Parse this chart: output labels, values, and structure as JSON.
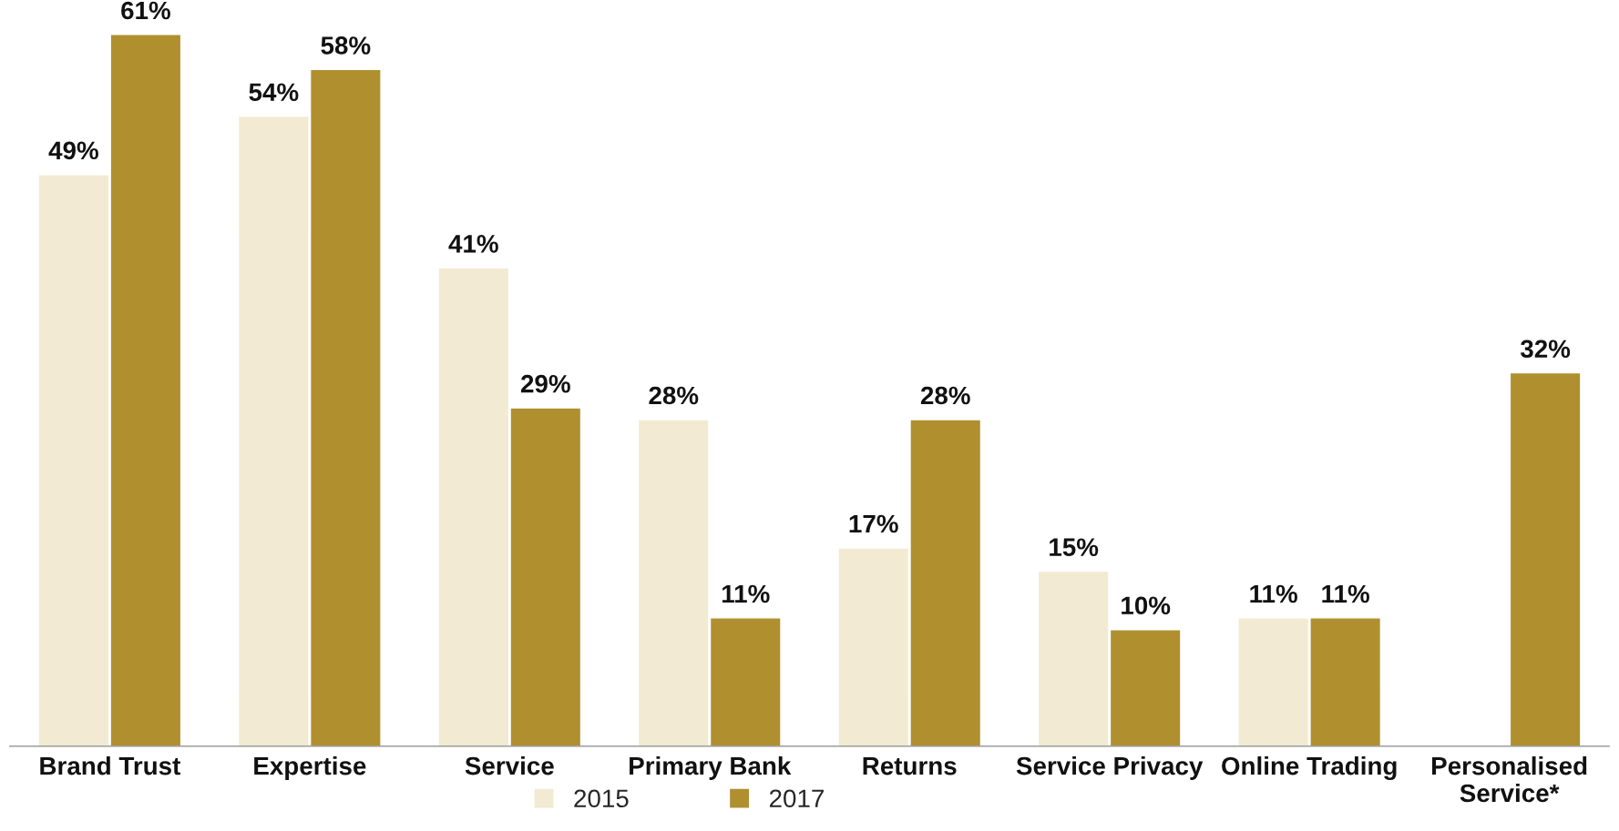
{
  "chart_data": {
    "type": "bar",
    "categories": [
      "Brand Trust",
      "Expertise",
      "Service",
      "Primary Bank",
      "Returns",
      "Service Privacy",
      "Online Trading",
      "Personalised\nService*"
    ],
    "series": [
      {
        "name": "2015",
        "color": "#f2ead2",
        "values": [
          49,
          54,
          41,
          28,
          17,
          15,
          11,
          null
        ],
        "value_labels": [
          "49%",
          "54%",
          "41%",
          "28%",
          "17%",
          "15%",
          "11%",
          null
        ]
      },
      {
        "name": "2017",
        "color": "#b08f2f",
        "values": [
          61,
          58,
          29,
          11,
          28,
          10,
          11,
          32
        ],
        "value_labels": [
          "61%",
          "58%",
          "29%",
          "11%",
          "28%",
          "10%",
          "11%",
          "32%"
        ]
      }
    ],
    "tick_labels": "x",
    "legend": "bottom",
    "grid": false
  }
}
